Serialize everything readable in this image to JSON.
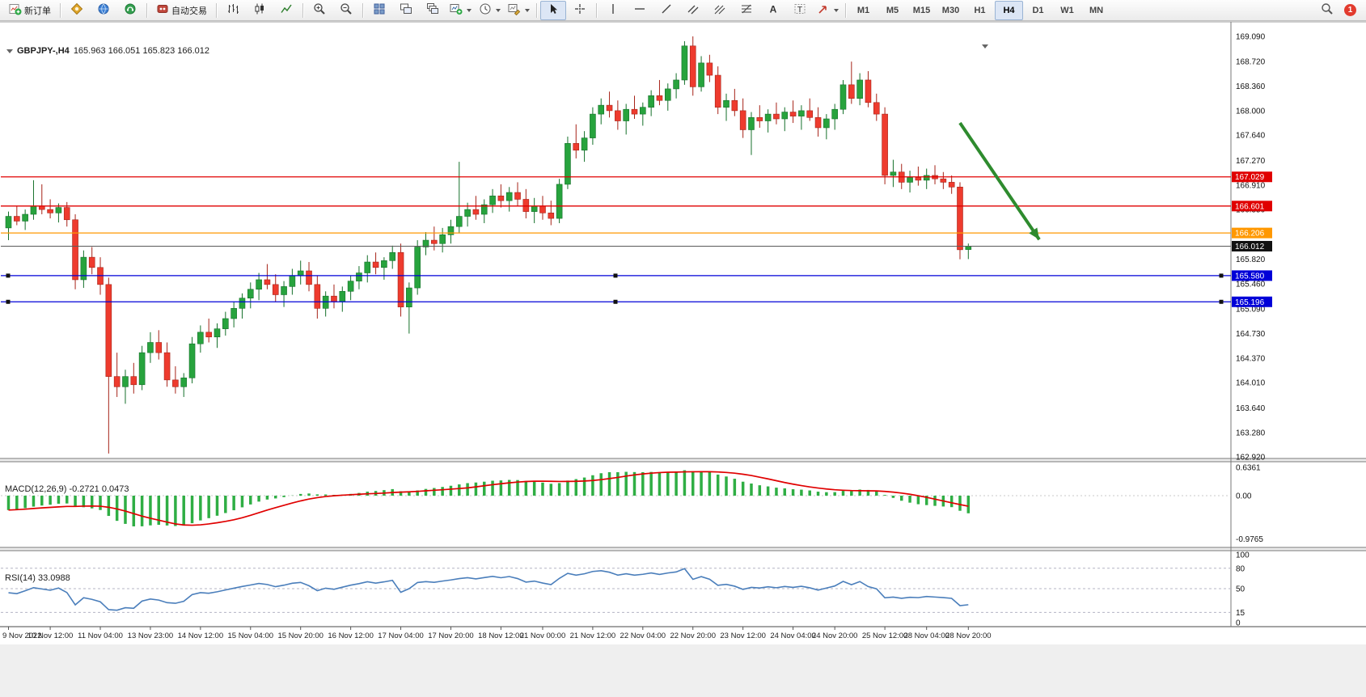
{
  "toolbar": {
    "new_order": "新订单",
    "auto_trading": "自动交易",
    "notification_count": "1",
    "timeframes": [
      {
        "label": "M1",
        "active": false
      },
      {
        "label": "M5",
        "active": false
      },
      {
        "label": "M15",
        "active": false
      },
      {
        "label": "M30",
        "active": false
      },
      {
        "label": "H1",
        "active": false
      },
      {
        "label": "H4",
        "active": true
      },
      {
        "label": "D1",
        "active": false
      },
      {
        "label": "W1",
        "active": false
      },
      {
        "label": "MN",
        "active": false
      }
    ]
  },
  "chart": {
    "title_symbol": "GBPJPY-,H4",
    "title_ohlc": "165.963 166.051 165.823 166.012",
    "macd_label": "MACD(12,26,9) -0.2721 0.0473",
    "rsi_label": "RSI(14) 33.0988"
  },
  "chart_data": {
    "type": "candlestick",
    "symbol": "GBPJPY-",
    "timeframe": "H4",
    "up_color": "#27a33d",
    "down_color": "#ee3b2e",
    "candles": [
      [
        166.28,
        166.52,
        166.1,
        166.45
      ],
      [
        166.45,
        166.6,
        166.32,
        166.38
      ],
      [
        166.38,
        166.55,
        166.25,
        166.48
      ],
      [
        166.48,
        166.98,
        166.4,
        166.6
      ],
      [
        166.6,
        166.92,
        166.48,
        166.55
      ],
      [
        166.55,
        166.7,
        166.42,
        166.5
      ],
      [
        166.5,
        166.64,
        166.36,
        166.58
      ],
      [
        166.58,
        166.66,
        166.3,
        166.4
      ],
      [
        166.4,
        166.48,
        165.38,
        165.52
      ],
      [
        165.52,
        165.95,
        165.4,
        165.85
      ],
      [
        165.85,
        166.0,
        165.6,
        165.7
      ],
      [
        165.7,
        165.85,
        165.3,
        165.45
      ],
      [
        165.45,
        165.55,
        162.97,
        164.1
      ],
      [
        164.1,
        164.45,
        163.8,
        163.95
      ],
      [
        163.95,
        164.2,
        163.7,
        164.1
      ],
      [
        164.1,
        164.3,
        163.85,
        163.98
      ],
      [
        163.98,
        164.55,
        163.9,
        164.45
      ],
      [
        164.45,
        164.75,
        164.3,
        164.6
      ],
      [
        164.6,
        164.78,
        164.35,
        164.45
      ],
      [
        164.45,
        164.6,
        163.95,
        164.05
      ],
      [
        164.05,
        164.25,
        163.85,
        163.95
      ],
      [
        163.95,
        164.15,
        163.8,
        164.08
      ],
      [
        164.08,
        164.68,
        164.0,
        164.58
      ],
      [
        164.58,
        164.85,
        164.45,
        164.75
      ],
      [
        164.75,
        164.95,
        164.6,
        164.68
      ],
      [
        164.68,
        164.88,
        164.52,
        164.8
      ],
      [
        164.8,
        165.05,
        164.7,
        164.95
      ],
      [
        164.95,
        165.2,
        164.82,
        165.1
      ],
      [
        165.1,
        165.32,
        164.95,
        165.25
      ],
      [
        165.25,
        165.48,
        165.1,
        165.38
      ],
      [
        165.38,
        165.62,
        165.22,
        165.52
      ],
      [
        165.52,
        165.75,
        165.38,
        165.45
      ],
      [
        165.45,
        165.6,
        165.2,
        165.3
      ],
      [
        165.3,
        165.5,
        165.12,
        165.42
      ],
      [
        165.42,
        165.68,
        165.3,
        165.58
      ],
      [
        165.58,
        165.8,
        165.45,
        165.65
      ],
      [
        165.65,
        165.78,
        165.35,
        165.45
      ],
      [
        165.45,
        165.58,
        164.95,
        165.1
      ],
      [
        165.1,
        165.35,
        164.98,
        165.28
      ],
      [
        165.28,
        165.45,
        165.1,
        165.2
      ],
      [
        165.2,
        165.42,
        165.05,
        165.35
      ],
      [
        165.35,
        165.58,
        165.22,
        165.5
      ],
      [
        165.5,
        165.72,
        165.38,
        165.62
      ],
      [
        165.62,
        165.88,
        165.48,
        165.78
      ],
      [
        165.78,
        165.92,
        165.6,
        165.7
      ],
      [
        165.7,
        165.85,
        165.52,
        165.8
      ],
      [
        165.8,
        166.02,
        165.68,
        165.92
      ],
      [
        165.92,
        166.05,
        164.98,
        165.12
      ],
      [
        165.12,
        165.48,
        164.73,
        165.4
      ],
      [
        165.4,
        166.1,
        165.3,
        166.0
      ],
      [
        166.0,
        166.22,
        165.88,
        166.1
      ],
      [
        166.1,
        166.3,
        165.95,
        166.05
      ],
      [
        166.05,
        166.28,
        165.92,
        166.18
      ],
      [
        166.18,
        166.4,
        166.05,
        166.3
      ],
      [
        166.3,
        167.25,
        166.2,
        166.45
      ],
      [
        166.45,
        166.65,
        166.3,
        166.55
      ],
      [
        166.55,
        166.75,
        166.4,
        166.48
      ],
      [
        166.48,
        166.7,
        166.35,
        166.62
      ],
      [
        166.62,
        166.85,
        166.5,
        166.75
      ],
      [
        166.75,
        166.92,
        166.58,
        166.68
      ],
      [
        166.68,
        166.88,
        166.52,
        166.8
      ],
      [
        166.8,
        166.95,
        166.6,
        166.7
      ],
      [
        166.7,
        166.85,
        166.42,
        166.52
      ],
      [
        166.52,
        166.72,
        166.35,
        166.6
      ],
      [
        166.6,
        166.75,
        166.4,
        166.5
      ],
      [
        166.5,
        166.68,
        166.32,
        166.42
      ],
      [
        166.42,
        167.0,
        166.35,
        166.92
      ],
      [
        166.92,
        167.62,
        166.85,
        167.52
      ],
      [
        167.52,
        167.8,
        167.3,
        167.42
      ],
      [
        167.42,
        167.7,
        167.25,
        167.6
      ],
      [
        167.6,
        168.05,
        167.5,
        167.95
      ],
      [
        167.95,
        168.18,
        167.8,
        168.08
      ],
      [
        168.08,
        168.28,
        167.9,
        168.0
      ],
      [
        168.0,
        168.15,
        167.72,
        167.85
      ],
      [
        167.85,
        168.1,
        167.65,
        168.02
      ],
      [
        168.02,
        168.22,
        167.88,
        167.95
      ],
      [
        167.95,
        168.12,
        167.78,
        168.05
      ],
      [
        168.05,
        168.3,
        167.92,
        168.22
      ],
      [
        168.22,
        168.45,
        168.08,
        168.15
      ],
      [
        168.15,
        168.4,
        168.0,
        168.32
      ],
      [
        168.32,
        168.55,
        168.18,
        168.45
      ],
      [
        168.45,
        169.02,
        168.38,
        168.95
      ],
      [
        168.95,
        169.09,
        168.22,
        168.35
      ],
      [
        168.35,
        168.8,
        168.28,
        168.7
      ],
      [
        168.7,
        168.82,
        168.42,
        168.52
      ],
      [
        168.52,
        168.65,
        167.95,
        168.05
      ],
      [
        168.05,
        168.25,
        167.85,
        168.15
      ],
      [
        168.15,
        168.32,
        167.92,
        168.0
      ],
      [
        168.0,
        168.18,
        167.6,
        167.72
      ],
      [
        167.72,
        167.98,
        167.35,
        167.9
      ],
      [
        167.9,
        168.08,
        167.75,
        167.85
      ],
      [
        167.85,
        168.02,
        167.68,
        167.95
      ],
      [
        167.95,
        168.12,
        167.8,
        167.88
      ],
      [
        167.88,
        168.05,
        167.7,
        167.98
      ],
      [
        167.98,
        168.15,
        167.82,
        167.92
      ],
      [
        167.92,
        168.08,
        167.72,
        168.0
      ],
      [
        168.0,
        168.18,
        167.85,
        167.9
      ],
      [
        167.9,
        168.05,
        167.62,
        167.75
      ],
      [
        167.75,
        167.95,
        167.58,
        167.88
      ],
      [
        167.88,
        168.1,
        167.72,
        168.02
      ],
      [
        168.02,
        168.45,
        167.95,
        168.38
      ],
      [
        168.38,
        168.72,
        168.1,
        168.18
      ],
      [
        168.18,
        168.55,
        168.08,
        168.45
      ],
      [
        168.45,
        168.58,
        168.05,
        168.12
      ],
      [
        168.12,
        168.25,
        167.85,
        167.95
      ],
      [
        167.95,
        168.05,
        166.92,
        167.05
      ],
      [
        167.05,
        167.28,
        166.88,
        167.1
      ],
      [
        167.1,
        167.22,
        166.85,
        166.95
      ],
      [
        166.95,
        167.12,
        166.8,
        167.02
      ],
      [
        167.02,
        167.18,
        166.9,
        166.98
      ],
      [
        166.98,
        167.15,
        166.85,
        167.05
      ],
      [
        167.05,
        167.2,
        166.92,
        167.0
      ],
      [
        167.0,
        167.1,
        166.85,
        166.95
      ],
      [
        166.95,
        167.05,
        166.78,
        166.88
      ],
      [
        166.88,
        166.95,
        165.82,
        165.96
      ],
      [
        165.963,
        166.051,
        165.823,
        166.012
      ]
    ],
    "y_ticks": [
      "169.090",
      "168.720",
      "168.360",
      "168.000",
      "167.640",
      "167.270",
      "166.910",
      "166.550",
      "166.190",
      "165.820",
      "165.460",
      "165.090",
      "164.730",
      "164.370",
      "164.010",
      "163.640",
      "163.280",
      "162.920"
    ],
    "x_labels": [
      {
        "t": "9 Nov 2022",
        "i": 0
      },
      {
        "t": "10 Nov 12:00",
        "i": 5
      },
      {
        "t": "11 Nov 04:00",
        "i": 11
      },
      {
        "t": "13 Nov 23:00",
        "i": 17
      },
      {
        "t": "14 Nov 12:00",
        "i": 23
      },
      {
        "t": "15 Nov 04:00",
        "i": 29
      },
      {
        "t": "15 Nov 20:00",
        "i": 35
      },
      {
        "t": "16 Nov 12:00",
        "i": 41
      },
      {
        "t": "17 Nov 04:00",
        "i": 47
      },
      {
        "t": "17 Nov 20:00",
        "i": 53
      },
      {
        "t": "18 Nov 12:00",
        "i": 59
      },
      {
        "t": "21 Nov 00:00",
        "i": 64
      },
      {
        "t": "21 Nov 12:00",
        "i": 70
      },
      {
        "t": "22 Nov 04:00",
        "i": 76
      },
      {
        "t": "22 Nov 20:00",
        "i": 82
      },
      {
        "t": "23 Nov 12:00",
        "i": 88
      },
      {
        "t": "24 Nov 04:00",
        "i": 94
      },
      {
        "t": "24 Nov 20:00",
        "i": 99
      },
      {
        "t": "25 Nov 12:00",
        "i": 105
      },
      {
        "t": "28 Nov 04:00",
        "i": 110
      },
      {
        "t": "28 Nov 20:00",
        "i": 115
      }
    ],
    "hlines": [
      {
        "value": 167.029,
        "color": "#e00000",
        "tag": "167.029",
        "handles": false
      },
      {
        "value": 166.601,
        "color": "#e00000",
        "tag": "166.601",
        "handles": false
      },
      {
        "value": 166.206,
        "color": "#ff9800",
        "tag": "166.206",
        "handles": false
      },
      {
        "value": 165.58,
        "color": "#0000d8",
        "tag": "165.580",
        "handles": true
      },
      {
        "value": 165.196,
        "color": "#0000d8",
        "tag": "165.196",
        "handles": true
      }
    ],
    "current_price": {
      "value": 166.012,
      "tag": "166.012",
      "line_color": "#5a5a5a",
      "tag_bg": "#111111"
    },
    "trend_arrow": {
      "from_i": 114,
      "from_p": 167.82,
      "to_i": 123.5,
      "to_p": 166.11,
      "color": "#2e8b2e"
    },
    "macd": {
      "bar_color": "#2fae44",
      "signal_color": "#e00000",
      "axis": [
        {
          "t": "0.6361",
          "v": 0.6361
        },
        {
          "t": "0.00",
          "v": 0
        },
        {
          "t": "-0.9765",
          "v": -0.9765
        }
      ]
    },
    "rsi": {
      "line_color": "#4a7ebb",
      "levels": [
        80,
        50,
        15
      ],
      "axis": [
        {
          "t": "100",
          "v": 100
        },
        {
          "t": "80",
          "v": 80
        },
        {
          "t": "50",
          "v": 50
        },
        {
          "t": "15",
          "v": 15
        },
        {
          "t": "0",
          "v": 0
        }
      ]
    }
  }
}
